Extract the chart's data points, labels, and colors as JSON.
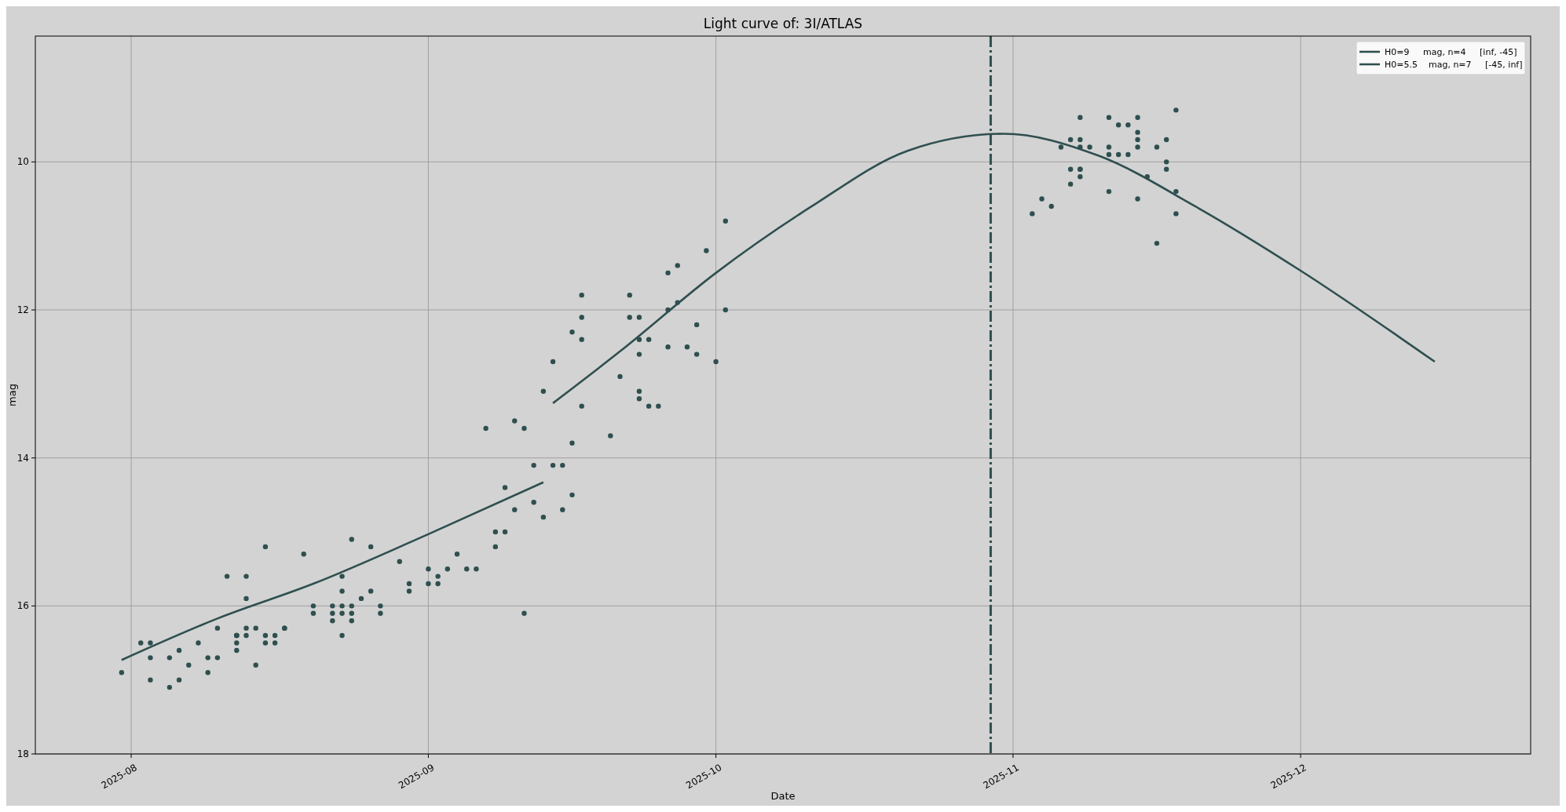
{
  "chart_data": {
    "type": "scatter",
    "title": "Light curve of: 3I/ATLAS",
    "xlabel": "Date",
    "ylabel": "mag",
    "xlim": [
      "2025-07-22",
      "2025-12-25"
    ],
    "xticks": [
      "2025-08",
      "2025-09",
      "2025-10",
      "2025-11",
      "2025-12"
    ],
    "ylim": [
      18,
      8.3
    ],
    "yticks": [
      10,
      12,
      14,
      16,
      18
    ],
    "grid": true,
    "legend": "top right",
    "ref_lines": [
      {
        "axis": "x",
        "value": "2025-10-29T16:00",
        "color": "#2f4f4f",
        "line_style": "dashdot"
      }
    ],
    "series": [
      {
        "marker": "circle",
        "color": "#2f4f4f",
        "x": [
          "2025-07-31",
          "2025-08-02",
          "2025-08-03",
          "2025-08-03",
          "2025-08-03",
          "2025-08-05",
          "2025-08-05",
          "2025-08-06",
          "2025-08-06",
          "2025-08-07",
          "2025-08-08",
          "2025-08-09",
          "2025-08-09",
          "2025-08-10",
          "2025-08-10",
          "2025-08-11",
          "2025-08-12",
          "2025-08-12",
          "2025-08-12",
          "2025-08-12",
          "2025-08-12",
          "2025-08-13",
          "2025-08-13",
          "2025-08-13",
          "2025-08-13",
          "2025-08-14",
          "2025-08-14",
          "2025-08-15",
          "2025-08-15",
          "2025-08-15",
          "2025-08-16",
          "2025-08-16",
          "2025-08-17",
          "2025-08-17",
          "2025-08-19",
          "2025-08-20",
          "2025-08-20",
          "2025-08-22",
          "2025-08-22",
          "2025-08-22",
          "2025-08-23",
          "2025-08-23",
          "2025-08-23",
          "2025-08-23",
          "2025-08-23",
          "2025-08-24",
          "2025-08-24",
          "2025-08-24",
          "2025-08-24",
          "2025-08-25",
          "2025-08-26",
          "2025-08-26",
          "2025-08-27",
          "2025-08-27",
          "2025-08-29",
          "2025-08-30",
          "2025-08-30",
          "2025-09-01",
          "2025-09-01",
          "2025-09-02",
          "2025-09-02",
          "2025-09-03",
          "2025-09-04",
          "2025-09-05",
          "2025-09-06",
          "2025-09-07",
          "2025-09-08",
          "2025-09-08",
          "2025-09-09",
          "2025-09-09",
          "2025-09-10",
          "2025-09-10",
          "2025-09-11",
          "2025-09-11",
          "2025-09-12",
          "2025-09-12",
          "2025-09-13",
          "2025-09-13",
          "2025-09-14",
          "2025-09-14",
          "2025-09-15",
          "2025-09-15",
          "2025-09-16",
          "2025-09-16",
          "2025-09-16",
          "2025-09-17",
          "2025-09-17",
          "2025-09-17",
          "2025-09-17",
          "2025-09-20",
          "2025-09-21",
          "2025-09-22",
          "2025-09-22",
          "2025-09-23",
          "2025-09-23",
          "2025-09-23",
          "2025-09-23",
          "2025-09-23",
          "2025-09-24",
          "2025-09-24",
          "2025-09-25",
          "2025-09-26",
          "2025-09-26",
          "2025-09-26",
          "2025-09-27",
          "2025-09-27",
          "2025-09-28",
          "2025-09-29",
          "2025-09-29",
          "2025-09-30",
          "2025-10-01",
          "2025-10-02",
          "2025-10-02",
          "2025-11-03",
          "2025-11-04",
          "2025-11-05",
          "2025-11-06",
          "2025-11-07",
          "2025-11-07",
          "2025-11-07",
          "2025-11-08",
          "2025-11-08",
          "2025-11-08",
          "2025-11-08",
          "2025-11-08",
          "2025-11-08",
          "2025-11-09",
          "2025-11-11",
          "2025-11-11",
          "2025-11-11",
          "2025-11-11",
          "2025-11-12",
          "2025-11-12",
          "2025-11-13",
          "2025-11-13",
          "2025-11-14",
          "2025-11-14",
          "2025-11-14",
          "2025-11-14",
          "2025-11-14",
          "2025-11-15",
          "2025-11-16",
          "2025-11-16",
          "2025-11-17",
          "2025-11-17",
          "2025-11-17",
          "2025-11-18",
          "2025-11-18",
          "2025-11-18"
        ],
        "values": [
          16.9,
          16.5,
          16.5,
          16.7,
          17.0,
          16.7,
          17.1,
          17.0,
          16.6,
          16.8,
          16.5,
          16.9,
          16.7,
          16.7,
          16.3,
          15.6,
          16.4,
          16.4,
          16.5,
          16.6,
          16.4,
          16.3,
          15.6,
          16.4,
          15.9,
          16.8,
          16.3,
          15.2,
          16.5,
          16.4,
          16.4,
          16.5,
          16.3,
          16.3,
          15.3,
          16.0,
          16.1,
          16.2,
          16.0,
          16.1,
          15.8,
          16.4,
          15.6,
          16.0,
          16.1,
          16.1,
          15.1,
          16.2,
          16.0,
          15.9,
          15.2,
          15.8,
          16.1,
          16.0,
          15.4,
          15.8,
          15.7,
          15.5,
          15.7,
          15.7,
          15.6,
          15.5,
          15.3,
          15.5,
          15.5,
          13.6,
          15.2,
          15.0,
          15.0,
          14.4,
          14.7,
          13.5,
          16.1,
          13.6,
          14.1,
          14.6,
          14.8,
          13.1,
          14.1,
          12.7,
          14.1,
          14.7,
          13.8,
          14.5,
          12.3,
          11.8,
          13.3,
          12.1,
          12.4,
          13.7,
          12.9,
          11.8,
          12.1,
          13.1,
          12.1,
          12.6,
          13.2,
          12.4,
          12.4,
          13.3,
          13.3,
          12.5,
          12.0,
          11.5,
          11.9,
          11.4,
          12.5,
          12.6,
          12.2,
          11.2,
          12.7,
          12.0,
          10.8,
          10.7,
          10.5,
          10.6,
          9.8,
          9.7,
          10.1,
          10.3,
          9.4,
          9.7,
          10.1,
          9.8,
          10.1,
          10.2,
          9.8,
          9.4,
          9.8,
          10.4,
          9.9,
          9.9,
          9.5,
          9.5,
          9.9,
          9.4,
          9.7,
          10.5,
          9.6,
          9.8,
          10.2,
          11.1,
          9.8,
          9.7,
          10.0,
          10.1,
          9.3,
          10.7,
          10.4
        ]
      },
      {
        "type": "line",
        "marker": "none",
        "name": "H0=9     mag, n=4     [inf, -45]",
        "color": "#2f4f4f",
        "x": [
          "2025-07-31",
          "2025-08-10",
          "2025-08-20",
          "2025-09-01",
          "2025-09-13"
        ],
        "values": [
          16.73,
          16.17,
          15.7,
          15.03,
          14.33
        ]
      },
      {
        "type": "line",
        "marker": "none",
        "name": "H0=5.5    mag, n=7     [-45, inf]",
        "color": "#2f4f4f",
        "x": [
          "2025-09-14",
          "2025-09-21",
          "2025-10-01",
          "2025-10-11",
          "2025-10-21",
          "2025-10-31",
          "2025-11-10",
          "2025-11-20",
          "2025-12-01",
          "2025-12-15"
        ],
        "values": [
          13.26,
          12.56,
          11.5,
          10.6,
          9.85,
          9.62,
          9.92,
          10.6,
          11.47,
          12.7
        ]
      }
    ]
  }
}
